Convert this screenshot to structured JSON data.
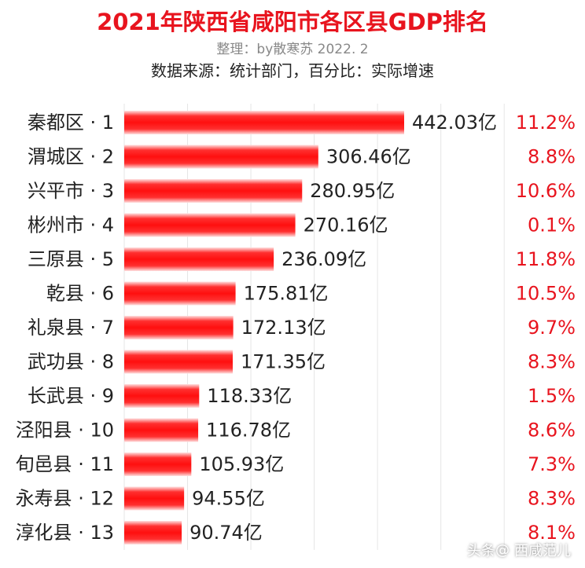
{
  "header": {
    "title": "2021年陕西省咸阳市各区县GDP排名",
    "credit": "整理：by散寒苏  2022. 2",
    "source": "数据来源：统计部门，百分比：实际增速"
  },
  "watermark": {
    "platform": "头条",
    "at_symbol": "@",
    "account": "西咸范儿"
  },
  "colors": {
    "bar": "#ff1a1a",
    "growth_text": "#e8141e",
    "title": "#e8141e"
  },
  "chart_data": {
    "type": "bar",
    "orientation": "horizontal",
    "unit": "亿",
    "categories": [
      "秦都区 · 1",
      "渭城区 · 2",
      "兴平市 · 3",
      "彬州市 · 4",
      "三原县 · 5",
      "乾县 · 6",
      "礼泉县 · 7",
      "武功县 · 8",
      "长武县 · 9",
      "泾阳县 · 10",
      "旬邑县 · 11",
      "永寿县 · 12",
      "淳化县 · 13"
    ],
    "values": [
      442.03,
      306.46,
      280.95,
      270.16,
      236.09,
      175.81,
      172.13,
      171.35,
      118.33,
      116.78,
      105.93,
      94.55,
      90.74
    ],
    "value_labels": [
      "442.03亿",
      "306.46亿",
      "280.95亿",
      "270.16亿",
      "236.09亿",
      "175.81亿",
      "172.13亿",
      "171.35亿",
      "118.33亿",
      "116.78亿",
      "105.93亿",
      "94.55亿",
      "90.74亿"
    ],
    "growth_labels": [
      "11.2%",
      "8.8%",
      "10.6%",
      "0.1%",
      "11.8%",
      "10.5%",
      "9.7%",
      "8.3%",
      "1.5%",
      "8.6%",
      "7.3%",
      "8.3%",
      "8.1%"
    ],
    "xlim": [
      0,
      500
    ],
    "grid": true
  }
}
